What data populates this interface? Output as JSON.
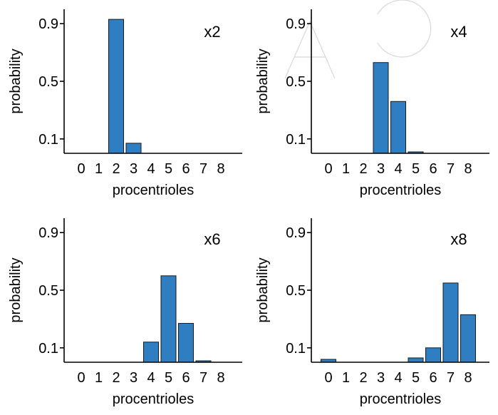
{
  "colors": {
    "bar": "#2f7ec1",
    "axis": "#000000",
    "watermark": "#d8d8d8"
  },
  "chart_data": [
    {
      "type": "bar",
      "annotation": "x2",
      "categories": [
        "0",
        "1",
        "2",
        "3",
        "4",
        "5",
        "6",
        "7",
        "8"
      ],
      "values": [
        0,
        0,
        0.93,
        0.07,
        0,
        0,
        0,
        0,
        0
      ],
      "xlabel": "procentrioles",
      "ylabel": "probability",
      "yticks": [
        "0.1",
        "0.5",
        "0.9"
      ],
      "ylim": [
        0,
        1.0
      ]
    },
    {
      "type": "bar",
      "annotation": "x4",
      "categories": [
        "0",
        "1",
        "2",
        "3",
        "4",
        "5",
        "6",
        "7",
        "8"
      ],
      "values": [
        0,
        0,
        0,
        0.63,
        0.36,
        0.01,
        0,
        0,
        0
      ],
      "xlabel": "procentrioles",
      "ylabel": "probability",
      "yticks": [
        "0.1",
        "0.5",
        "0.9"
      ],
      "ylim": [
        0,
        1.0
      ]
    },
    {
      "type": "bar",
      "annotation": "x6",
      "categories": [
        "0",
        "1",
        "2",
        "3",
        "4",
        "5",
        "6",
        "7",
        "8"
      ],
      "values": [
        0,
        0,
        0,
        0,
        0.14,
        0.6,
        0.27,
        0.01,
        0
      ],
      "xlabel": "procentrioles",
      "ylabel": "probability",
      "yticks": [
        "0.1",
        "0.5",
        "0.9"
      ],
      "ylim": [
        0,
        1.0
      ]
    },
    {
      "type": "bar",
      "annotation": "x8",
      "categories": [
        "0",
        "1",
        "2",
        "3",
        "4",
        "5",
        "6",
        "7",
        "8"
      ],
      "values": [
        0.02,
        0,
        0,
        0,
        0,
        0.03,
        0.1,
        0.55,
        0.33
      ],
      "xlabel": "procentrioles",
      "ylabel": "probability",
      "yticks": [
        "0.1",
        "0.5",
        "0.9"
      ],
      "ylim": [
        0,
        1.0
      ]
    }
  ]
}
